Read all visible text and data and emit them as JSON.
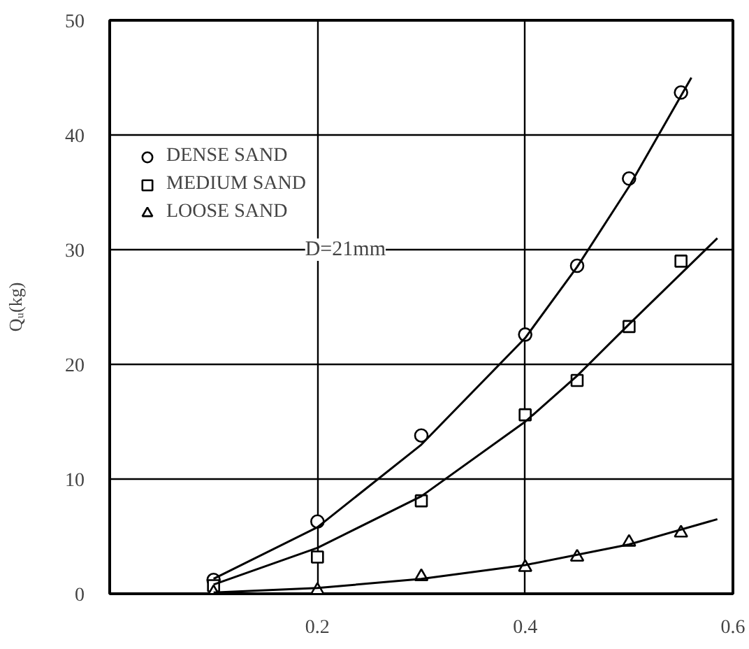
{
  "chart_data": {
    "type": "scatter",
    "ylabel": "Qᵤ(kg)",
    "xlim": [
      0,
      0.6
    ],
    "ylim": [
      0,
      50
    ],
    "xticks": [
      0.2,
      0.4,
      0.6
    ],
    "yticks": [
      0,
      10,
      20,
      30,
      40,
      50
    ],
    "grid": true,
    "legend": "top left",
    "annotations": [
      "D=21mm"
    ],
    "series": [
      {
        "name": "DENSE SAND",
        "marker": "circle",
        "color": "#000000",
        "x": [
          0.1,
          0.2,
          0.3,
          0.4,
          0.45,
          0.5,
          0.55
        ],
        "values": [
          1.2,
          6.3,
          13.8,
          22.6,
          28.6,
          36.2,
          43.7
        ]
      },
      {
        "name": "MEDIUM SAND",
        "marker": "square",
        "color": "#000000",
        "x": [
          0.1,
          0.2,
          0.3,
          0.4,
          0.45,
          0.5,
          0.55
        ],
        "values": [
          0.7,
          3.2,
          8.1,
          15.6,
          18.6,
          23.3,
          29.0
        ]
      },
      {
        "name": "LOOSE SAND",
        "marker": "triangle",
        "color": "#000000",
        "x": [
          0.1,
          0.2,
          0.3,
          0.4,
          0.45,
          0.5,
          0.55
        ],
        "values": [
          0.1,
          0.3,
          1.5,
          2.3,
          3.2,
          4.5,
          5.3
        ]
      },
      {
        "type": "line",
        "marker": "none",
        "color": "#000000",
        "x": [
          0.1,
          0.2,
          0.3,
          0.4,
          0.45,
          0.5,
          0.56
        ],
        "values": [
          1.3,
          5.8,
          13.0,
          22.3,
          28.5,
          35.5,
          45
        ]
      },
      {
        "type": "line",
        "marker": "none",
        "color": "#000000",
        "x": [
          0.1,
          0.2,
          0.3,
          0.4,
          0.45,
          0.5,
          0.585
        ],
        "values": [
          0.8,
          4.0,
          8.5,
          15.0,
          19.0,
          23.5,
          31
        ]
      },
      {
        "type": "line",
        "marker": "none",
        "color": "#000000",
        "x": [
          0.1,
          0.2,
          0.3,
          0.4,
          0.5,
          0.585
        ],
        "values": [
          0.1,
          0.5,
          1.3,
          2.5,
          4.3,
          6.5
        ]
      }
    ]
  }
}
